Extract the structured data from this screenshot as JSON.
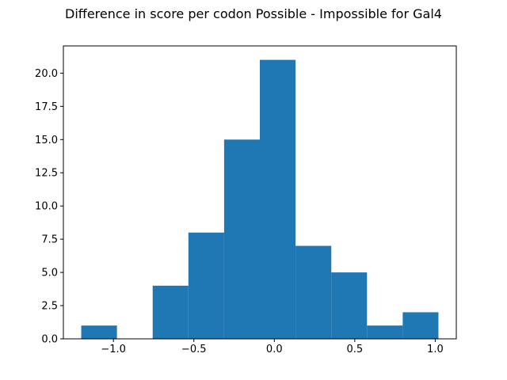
{
  "chart_data": {
    "type": "bar",
    "title": "Difference in score per codon Possible - Impossible for Gal4",
    "xlabel": "",
    "ylabel": "",
    "bin_edges": [
      -1.2,
      -0.978,
      -0.756,
      -0.534,
      -0.312,
      -0.09,
      0.132,
      0.354,
      0.576,
      0.798,
      1.02
    ],
    "values": [
      1,
      0,
      4,
      8,
      15,
      21,
      7,
      5,
      1,
      2
    ],
    "xlim": [
      -1.311,
      1.131
    ],
    "ylim": [
      0,
      22.05
    ],
    "x_ticks": [
      -1.0,
      -0.5,
      0.0,
      0.5,
      1.0
    ],
    "x_tick_labels": [
      "−1.0",
      "−0.5",
      "0.0",
      "0.5",
      "1.0"
    ],
    "y_ticks": [
      0,
      2.5,
      5,
      7.5,
      10,
      12.5,
      15,
      17.5,
      20
    ],
    "y_tick_labels": [
      "0.0",
      "2.5",
      "5.0",
      "7.5",
      "10.0",
      "12.5",
      "15.0",
      "17.5",
      "20.0"
    ],
    "grid": false,
    "bar_color": "#1f77b4"
  }
}
